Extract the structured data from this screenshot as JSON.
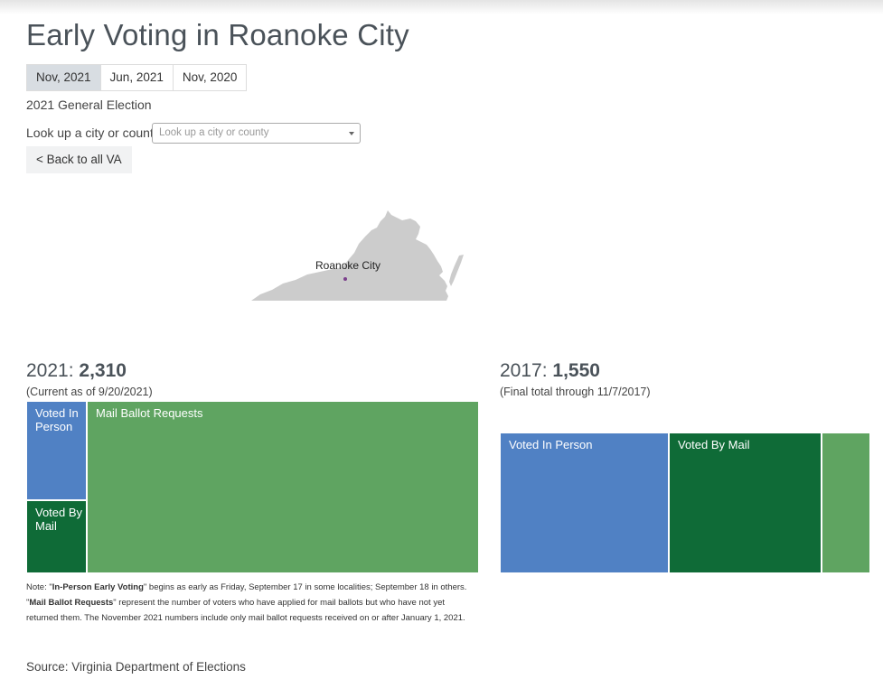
{
  "page": {
    "title": "Early Voting in Roanoke City"
  },
  "tabs": [
    {
      "label": "Nov, 2021",
      "active": true
    },
    {
      "label": "Jun, 2021",
      "active": false
    },
    {
      "label": "Nov, 2020",
      "active": false
    }
  ],
  "election_label": "2021 General Election",
  "lookup": {
    "label": "Look up a city or county:",
    "placeholder": "Look up a city or county",
    "icon": "chevron-down-icon"
  },
  "back_button": {
    "label": "< Back to all VA"
  },
  "map": {
    "label": "Roanoke City",
    "land_color": "#cccccc",
    "marker_color": "#7b3f8c"
  },
  "colors": {
    "in_person": "#5081c4",
    "by_mail": "#0f6b37",
    "requests": "#5fa461"
  },
  "chart_data": [
    {
      "type": "treemap",
      "year_label": "2021:",
      "total_text": "2,310",
      "total": 2310,
      "subtitle": "(Current as of 9/20/2021)",
      "series": [
        {
          "name": "Voted In Person",
          "value": 178,
          "color": "#5081c4"
        },
        {
          "name": "Voted By Mail",
          "value": 130,
          "color": "#0f6b37"
        },
        {
          "name": "Mail Ballot Requests",
          "value": 2002,
          "color": "#5fa461"
        }
      ]
    },
    {
      "type": "treemap",
      "year_label": "2017:",
      "total_text": "1,550",
      "total": 1550,
      "subtitle": "(Final total through 11/7/2017)",
      "series": [
        {
          "name": "Voted In Person",
          "value": 707,
          "color": "#5081c4"
        },
        {
          "name": "Voted By Mail",
          "value": 640,
          "color": "#0f6b37"
        },
        {
          "name": "",
          "value": 203,
          "color": "#5fa461"
        }
      ]
    }
  ],
  "footnote": {
    "p1": "Note: \"",
    "b1": "In-Person Early Voting",
    "p2": "\" begins as early as Friday, September 17 in some localities; September 18 in others. \"",
    "b2": "Mail Ballot Requests",
    "p3": "\" represent the number of voters who have applied for mail ballots but who have not yet returned them. The November 2021 numbers include only mail ballot requests received on or after January 1, 2021."
  },
  "source": "Source: Virginia Department of Elections"
}
